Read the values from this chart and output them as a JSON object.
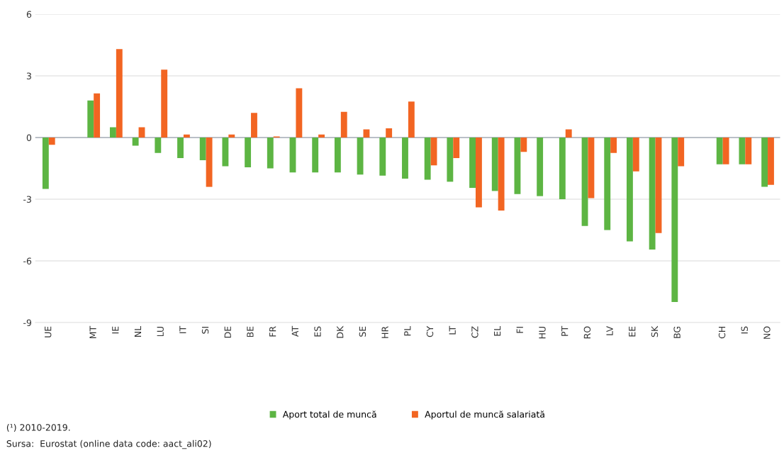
{
  "chart_data": {
    "type": "bar",
    "categories": [
      "UE",
      null,
      "MT",
      "IE",
      "NL",
      "LU",
      "IT",
      "SI",
      "DE",
      "BE",
      "FR",
      "AT",
      "ES",
      "DK",
      "SE",
      "HR",
      "PL",
      "CY",
      "LT",
      "CZ",
      "EL",
      "FI",
      "HU",
      "PT",
      "RO",
      "LV",
      "EE",
      "SK",
      "BG",
      null,
      "CH",
      "IS",
      "NO"
    ],
    "series": [
      {
        "name": "Aport total de muncă",
        "color": "#5db543",
        "values": [
          -2.5,
          null,
          1.8,
          0.5,
          -0.4,
          -0.75,
          -1.0,
          -1.1,
          -1.4,
          -1.45,
          -1.5,
          -1.7,
          -1.7,
          -1.7,
          -1.8,
          -1.85,
          -2.0,
          -2.05,
          -2.15,
          -2.45,
          -2.6,
          -2.75,
          -2.85,
          -3.0,
          -4.3,
          -4.5,
          -5.05,
          -5.45,
          -8.0,
          null,
          -1.3,
          -1.3,
          -2.4
        ]
      },
      {
        "name": "Aportul de muncă salariată",
        "color": "#f26522",
        "values": [
          -0.35,
          null,
          2.15,
          4.3,
          0.5,
          3.3,
          0.15,
          -2.4,
          0.15,
          1.2,
          0.05,
          2.4,
          0.15,
          1.25,
          0.4,
          0.45,
          1.75,
          -1.35,
          -1.0,
          -3.4,
          -3.55,
          -0.7,
          0,
          0.4,
          -2.95,
          -0.75,
          -1.65,
          -4.65,
          -1.4,
          null,
          -1.3,
          -1.3,
          -2.3
        ]
      }
    ],
    "ylim": [
      -9,
      6
    ],
    "yticks": [
      -9,
      -6,
      -3,
      0,
      3,
      6
    ],
    "grid": "y",
    "legend": "bottom",
    "ref_lines": [
      {
        "axis": "y",
        "value": 0,
        "color": "#aab0bb"
      }
    ],
    "annotations": [
      "(¹) 2010-2019.",
      "Sursa:  Eurostat (online data code: aact_ali02)"
    ]
  }
}
